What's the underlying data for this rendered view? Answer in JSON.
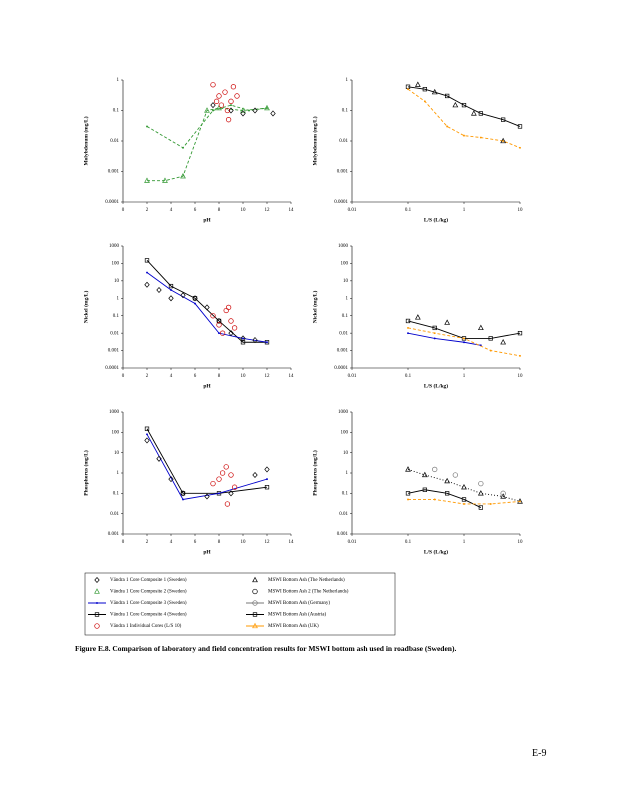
{
  "chart_data": [
    {
      "type": "scatter",
      "y_label": "Molybdenum (mg/L)",
      "x_label": "pH",
      "xscale": "linear",
      "yscale": "log",
      "xlim": [
        0,
        14
      ],
      "xticks": [
        0,
        2,
        4,
        6,
        8,
        10,
        12,
        14
      ],
      "ylim": [
        0.0001,
        1
      ],
      "yticks": [
        0.0001,
        0.001,
        0.01,
        0.1,
        1
      ],
      "series": [
        {
          "color": "#339933",
          "marker": "triangle",
          "line": true,
          "dash": "3,2",
          "x": [
            2,
            3.5,
            5,
            7,
            8,
            10,
            12
          ],
          "values": [
            0.0005,
            0.0005,
            0.0007,
            0.1,
            0.12,
            0.1,
            0.12
          ]
        },
        {
          "color": "#339933",
          "marker": "none",
          "line": true,
          "dash": "3,2",
          "x": [
            2,
            5,
            7.5,
            9,
            10.5,
            12
          ],
          "values": [
            0.03,
            0.006,
            0.1,
            0.15,
            0.1,
            0.12
          ]
        },
        {
          "color": "#000000",
          "marker": "diamond",
          "line": false,
          "x": [
            7.5,
            9,
            10,
            11,
            12.5
          ],
          "values": [
            0.15,
            0.1,
            0.08,
            0.1,
            0.08
          ]
        },
        {
          "color": "#cc0000",
          "marker": "circle",
          "line": false,
          "x": [
            7.5,
            8,
            8.2,
            8.5,
            8.7,
            9,
            9.2,
            9.5,
            8.8,
            7.8
          ],
          "values": [
            0.7,
            0.3,
            0.15,
            0.4,
            0.1,
            0.2,
            0.6,
            0.3,
            0.05,
            0.2
          ]
        }
      ]
    },
    {
      "type": "scatter",
      "y_label": "Molybdenum (mg/L)",
      "x_label": "L/S (L/kg)",
      "xscale": "log",
      "yscale": "log",
      "xlim": [
        0.01,
        10
      ],
      "xticks": [
        0.01,
        0.1,
        1,
        10
      ],
      "ylim": [
        0.0001,
        1
      ],
      "yticks": [
        0.0001,
        0.001,
        0.01,
        0.1,
        1
      ],
      "series": [
        {
          "color": "#000000",
          "marker": "square",
          "line": true,
          "x": [
            0.1,
            0.2,
            0.5,
            1,
            2,
            5,
            10
          ],
          "values": [
            0.6,
            0.5,
            0.3,
            0.15,
            0.08,
            0.05,
            0.03
          ]
        },
        {
          "color": "#ff9900",
          "marker": "none",
          "line": true,
          "dash": "3,2",
          "x": [
            0.1,
            0.2,
            0.5,
            1,
            2,
            5,
            10
          ],
          "values": [
            0.5,
            0.2,
            0.03,
            0.015,
            0.013,
            0.01,
            0.006
          ]
        },
        {
          "color": "#000000",
          "marker": "triangle",
          "line": false,
          "x": [
            0.15,
            0.3,
            0.7,
            1.5,
            5
          ],
          "values": [
            0.7,
            0.4,
            0.15,
            0.08,
            0.01
          ]
        }
      ]
    },
    {
      "type": "scatter",
      "y_label": "Nickel (mg/L)",
      "x_label": "pH",
      "xscale": "linear",
      "yscale": "log",
      "xlim": [
        0,
        14
      ],
      "xticks": [
        0,
        2,
        4,
        6,
        8,
        10,
        12,
        14
      ],
      "ylim": [
        0.0001,
        1000
      ],
      "yticks": [
        0.0001,
        0.001,
        0.01,
        0.1,
        1,
        10,
        100,
        1000
      ],
      "series": [
        {
          "color": "#000000",
          "marker": "square",
          "line": true,
          "x": [
            2,
            4,
            6,
            8,
            10,
            12
          ],
          "values": [
            150,
            5,
            1,
            0.05,
            0.003,
            0.003
          ]
        },
        {
          "color": "#0000cc",
          "marker": "none",
          "line": true,
          "x": [
            2,
            4,
            6,
            8,
            10,
            12
          ],
          "values": [
            30,
            3,
            0.5,
            0.01,
            0.005,
            0.003
          ]
        },
        {
          "color": "#000000",
          "marker": "diamond",
          "line": false,
          "x": [
            2,
            3,
            4,
            5,
            6,
            7,
            8,
            9,
            10,
            11
          ],
          "values": [
            6,
            3,
            1,
            1.5,
            1,
            0.3,
            0.05,
            0.01,
            0.005,
            0.004
          ]
        },
        {
          "color": "#cc0000",
          "marker": "circle",
          "line": false,
          "x": [
            7.5,
            8,
            8.3,
            8.6,
            9,
            9.3,
            8.8
          ],
          "values": [
            0.1,
            0.03,
            0.01,
            0.2,
            0.05,
            0.02,
            0.3
          ]
        }
      ]
    },
    {
      "type": "scatter",
      "y_label": "Nickel (mg/L)",
      "x_label": "L/S (L/kg)",
      "xscale": "log",
      "yscale": "log",
      "xlim": [
        0.01,
        10
      ],
      "xticks": [
        0.01,
        0.1,
        1,
        10
      ],
      "ylim": [
        0.0001,
        1000
      ],
      "yticks": [
        0.0001,
        0.001,
        0.01,
        0.1,
        1,
        10,
        100,
        1000
      ],
      "series": [
        {
          "color": "#000000",
          "marker": "square",
          "line": true,
          "x": [
            0.1,
            0.3,
            1,
            3,
            10
          ],
          "values": [
            0.05,
            0.02,
            0.005,
            0.005,
            0.01
          ]
        },
        {
          "color": "#0000cc",
          "marker": "none",
          "line": true,
          "x": [
            0.1,
            0.3,
            1,
            2
          ],
          "values": [
            0.01,
            0.005,
            0.003,
            0.002
          ]
        },
        {
          "color": "#ff9900",
          "marker": "none",
          "line": true,
          "dash": "3,2",
          "x": [
            0.1,
            0.3,
            1,
            3,
            10
          ],
          "values": [
            0.02,
            0.01,
            0.005,
            0.001,
            0.0005
          ]
        },
        {
          "color": "#000000",
          "marker": "triangle",
          "line": false,
          "x": [
            0.15,
            0.5,
            2,
            5
          ],
          "values": [
            0.08,
            0.04,
            0.02,
            0.003
          ]
        }
      ]
    },
    {
      "type": "scatter",
      "y_label": "Phosphorus (mg/L)",
      "x_label": "pH",
      "xscale": "linear",
      "yscale": "log",
      "xlim": [
        0,
        14
      ],
      "xticks": [
        0,
        2,
        4,
        6,
        8,
        10,
        12,
        14
      ],
      "ylim": [
        0.001,
        1000
      ],
      "yticks": [
        0.001,
        0.01,
        0.1,
        1,
        10,
        100,
        1000
      ],
      "series": [
        {
          "color": "#000000",
          "marker": "square",
          "line": true,
          "x": [
            2,
            5,
            8,
            12
          ],
          "values": [
            150,
            0.1,
            0.1,
            0.2
          ]
        },
        {
          "color": "#0000cc",
          "marker": "none",
          "line": true,
          "x": [
            2,
            5,
            8,
            12
          ],
          "values": [
            80,
            0.05,
            0.1,
            0.5
          ]
        },
        {
          "color": "#000000",
          "marker": "diamond",
          "line": false,
          "x": [
            2,
            3,
            4,
            5,
            7,
            9,
            11,
            12
          ],
          "values": [
            40,
            5,
            0.5,
            0.1,
            0.07,
            0.1,
            0.8,
            1.5
          ]
        },
        {
          "color": "#cc0000",
          "marker": "circle",
          "line": false,
          "x": [
            7.5,
            8,
            8.3,
            8.6,
            9,
            9.3,
            8.7
          ],
          "values": [
            0.3,
            0.5,
            1,
            2,
            0.8,
            0.2,
            0.03
          ]
        }
      ]
    },
    {
      "type": "scatter",
      "y_label": "Phosphorus (mg/L)",
      "x_label": "L/S (L/kg)",
      "xscale": "log",
      "yscale": "log",
      "xlim": [
        0.01,
        10
      ],
      "xticks": [
        0.01,
        0.1,
        1,
        10
      ],
      "ylim": [
        0.001,
        1000
      ],
      "yticks": [
        0.001,
        0.01,
        0.1,
        1,
        10,
        100,
        1000
      ],
      "series": [
        {
          "color": "#000000",
          "marker": "triangle",
          "line": true,
          "dash": "1,2",
          "x": [
            0.1,
            0.2,
            0.5,
            1,
            2,
            5,
            10
          ],
          "values": [
            1.5,
            0.8,
            0.4,
            0.2,
            0.1,
            0.07,
            0.04
          ]
        },
        {
          "color": "#000000",
          "marker": "square",
          "line": true,
          "x": [
            0.1,
            0.2,
            0.5,
            1,
            2
          ],
          "values": [
            0.1,
            0.15,
            0.1,
            0.05,
            0.02
          ]
        },
        {
          "color": "#ff9900",
          "marker": "none",
          "line": true,
          "dash": "3,2",
          "x": [
            0.1,
            0.3,
            1,
            3,
            10
          ],
          "values": [
            0.05,
            0.05,
            0.03,
            0.03,
            0.04
          ]
        },
        {
          "color": "#777777",
          "marker": "circle",
          "line": false,
          "x": [
            0.3,
            0.7,
            2,
            5
          ],
          "values": [
            1.5,
            0.8,
            0.3,
            0.1
          ]
        }
      ]
    }
  ],
  "legend": [
    {
      "name": "Vändra 1 Core Composite 1 (Sweden)",
      "color": "#000000",
      "marker": "diamond",
      "line": false
    },
    {
      "name": "Vändra 1 Core Composite 2 (Sweden)",
      "color": "#339933",
      "marker": "triangle",
      "line": false
    },
    {
      "name": "Vändra 1 Core Composite 3 (Sweden)",
      "color": "#0000cc",
      "marker": "none",
      "line": true
    },
    {
      "name": "Vändra 1 Core Composite 4 (Sweden)",
      "color": "#000000",
      "marker": "square",
      "line": true
    },
    {
      "name": "Vändra 1 Individual Cores (L/S 10)",
      "color": "#cc0000",
      "marker": "circle",
      "line": false
    },
    {
      "name": "MSWI Bottom Ash (The Netherlands)",
      "color": "#000000",
      "marker": "triangle",
      "line": false
    },
    {
      "name": "MSWI Bottom Ash 2 (The Netherlands)",
      "color": "#000000",
      "marker": "circle",
      "line": false
    },
    {
      "name": "MSWI Bottom Ash (Germany)",
      "color": "#777777",
      "marker": "circle",
      "line": true
    },
    {
      "name": "MSWI Bottom Ash (Austria)",
      "color": "#000000",
      "marker": "square",
      "line": true
    },
    {
      "name": "MSWI Bottom Ash (UK)",
      "color": "#ff9900",
      "marker": "triangle",
      "line": true
    }
  ],
  "caption": "Figure E.8. Comparison of laboratory and field concentration results for MSWI bottom ash used in roadbase (Sweden).",
  "page_number": "E-9"
}
